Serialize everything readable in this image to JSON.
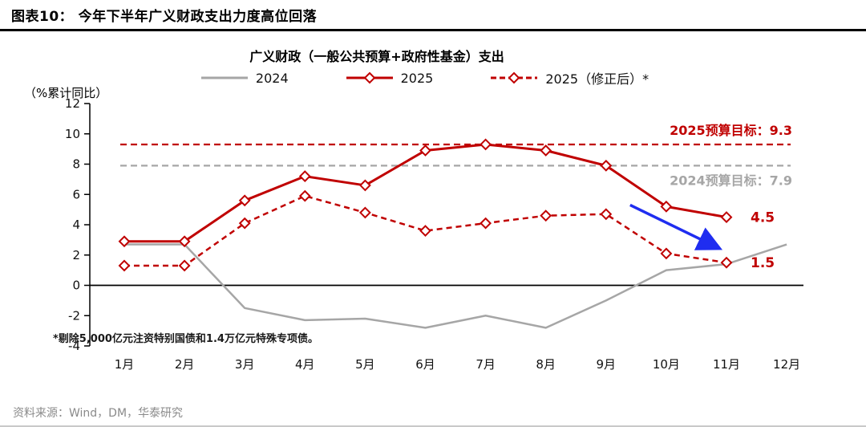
{
  "header": {
    "title": "图表10：  今年下半年广义财政支出力度高位回落"
  },
  "chart_data": {
    "type": "line",
    "title": "广义财政（一般公共预算+政府性基金）支出",
    "ylabel": "（%累计同比）",
    "categories": [
      "1月",
      "2月",
      "3月",
      "4月",
      "5月",
      "6月",
      "7月",
      "8月",
      "9月",
      "10月",
      "11月",
      "12月"
    ],
    "ylim": [
      -4,
      12
    ],
    "yticks": [
      -4,
      -2,
      0,
      2,
      4,
      6,
      8,
      10,
      12
    ],
    "grid": false,
    "legend_position": "top",
    "series": [
      {
        "name": "2024",
        "color": "#a6a6a6",
        "style": "solid",
        "marker": "none",
        "width": 2.5,
        "values": [
          2.7,
          2.7,
          -1.5,
          -2.3,
          -2.2,
          -2.8,
          -2.0,
          -2.8,
          -1.0,
          1.0,
          1.4,
          2.7
        ]
      },
      {
        "name": "2025",
        "color": "#c00000",
        "style": "solid",
        "marker": "diamond",
        "width": 3,
        "values": [
          2.9,
          2.9,
          5.6,
          7.2,
          6.6,
          8.9,
          9.3,
          8.9,
          7.9,
          5.2,
          4.5,
          null
        ]
      },
      {
        "name": "2025（修正后）*",
        "color": "#c00000",
        "style": "dashed",
        "marker": "diamond",
        "width": 2.5,
        "values": [
          1.3,
          1.3,
          4.1,
          5.9,
          4.8,
          3.6,
          4.1,
          4.6,
          4.7,
          2.1,
          1.5,
          null
        ]
      }
    ],
    "reference_lines": [
      {
        "value": 9.3,
        "color": "#c00000",
        "label": "2025预算目标：9.3",
        "label_position": "above"
      },
      {
        "value": 7.9,
        "color": "#a6a6a6",
        "label": "2024预算目标：7.9",
        "label_position": "below"
      }
    ],
    "end_labels": [
      {
        "text": "4.5",
        "x_index": 10,
        "value": 4.5,
        "color": "#c00000"
      },
      {
        "text": "1.5",
        "x_index": 10,
        "value": 1.5,
        "color": "#c00000"
      }
    ],
    "annotation_arrow": {
      "color": "#1f2df0",
      "from": {
        "x_index": 8.4,
        "value": 5.3
      },
      "to": {
        "x_index": 9.85,
        "value": 2.5
      }
    }
  },
  "footnote": "*剔除5,000亿元注资特别国债和1.4万亿元特殊专项债。",
  "source": "资料来源：Wind，DM，华泰研究"
}
